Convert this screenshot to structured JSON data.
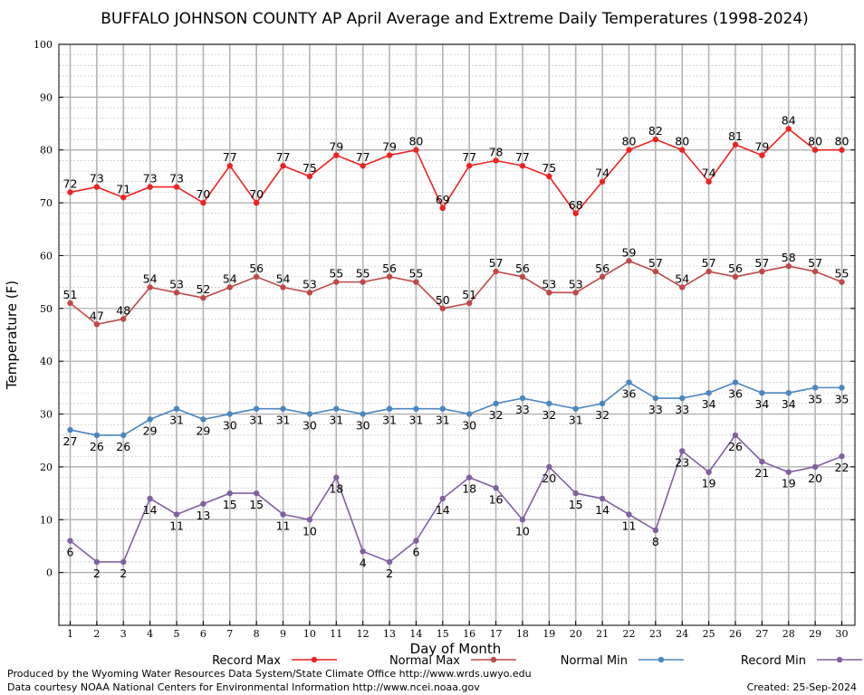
{
  "chart_data": {
    "type": "line",
    "title": "BUFFALO JOHNSON COUNTY AP April Average and Extreme Daily Temperatures (1998-2024)",
    "xlabel": "Day of Month",
    "ylabel": "Temperature (F)",
    "xlim": [
      1,
      30
    ],
    "ylim": [
      -10,
      100
    ],
    "yticks": [
      0,
      10,
      20,
      30,
      40,
      50,
      60,
      70,
      80,
      90,
      100
    ],
    "grid": true,
    "legend_position": "bottom",
    "x": [
      1,
      2,
      3,
      4,
      5,
      6,
      7,
      8,
      9,
      10,
      11,
      12,
      13,
      14,
      15,
      16,
      17,
      18,
      19,
      20,
      21,
      22,
      23,
      24,
      25,
      26,
      27,
      28,
      29,
      30
    ],
    "series": [
      {
        "name": "Record Max",
        "color": "#ee2222",
        "values": [
          72,
          73,
          71,
          73,
          73,
          70,
          77,
          70,
          77,
          75,
          79,
          77,
          79,
          80,
          69,
          77,
          78,
          77,
          75,
          68,
          74,
          80,
          82,
          80,
          74,
          81,
          79,
          84,
          80,
          80
        ]
      },
      {
        "name": "Normal Max",
        "color": "#c04848",
        "values": [
          51,
          47,
          48,
          54,
          53,
          52,
          54,
          56,
          54,
          53,
          55,
          55,
          56,
          55,
          50,
          51,
          57,
          56,
          53,
          53,
          56,
          59,
          57,
          54,
          57,
          56,
          57,
          58,
          57,
          55
        ]
      },
      {
        "name": "Normal Min",
        "color": "#4a86c0",
        "values": [
          27,
          26,
          26,
          29,
          31,
          29,
          30,
          31,
          31,
          30,
          31,
          30,
          31,
          31,
          31,
          30,
          32,
          33,
          32,
          31,
          32,
          36,
          33,
          33,
          34,
          36,
          34,
          34,
          35,
          35
        ]
      },
      {
        "name": "Record Min",
        "color": "#8060a0",
        "values": [
          6,
          2,
          2,
          14,
          11,
          13,
          15,
          15,
          11,
          10,
          18,
          4,
          2,
          6,
          14,
          18,
          16,
          10,
          20,
          15,
          14,
          11,
          8,
          23,
          19,
          26,
          21,
          19,
          20,
          22
        ]
      }
    ]
  },
  "footer": {
    "producer": "Produced by the Wyoming Water Resources Data System/State Climate Office http://www.wrds.uwyo.edu",
    "source": "Data courtesy NOAA National Centers for Environmental Information http://www.ncei.noaa.gov",
    "created": "Created:  25-Sep-2024"
  }
}
